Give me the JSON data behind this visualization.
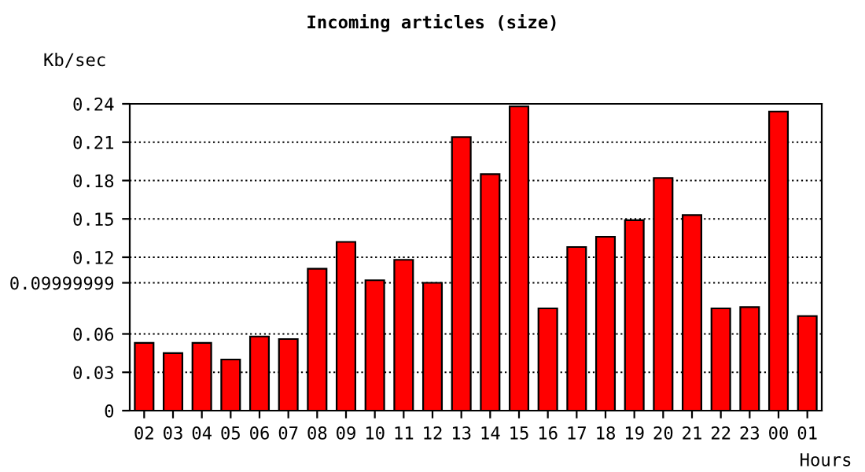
{
  "chart_data": {
    "type": "bar",
    "title": "Incoming articles (size)",
    "ylabel": "Kb/sec",
    "xlabel": "Hours",
    "categories": [
      "02",
      "03",
      "04",
      "05",
      "06",
      "07",
      "08",
      "09",
      "10",
      "11",
      "12",
      "13",
      "14",
      "15",
      "16",
      "17",
      "18",
      "19",
      "20",
      "21",
      "22",
      "23",
      "00",
      "01"
    ],
    "values": [
      0.053,
      0.045,
      0.053,
      0.04,
      0.058,
      0.056,
      0.111,
      0.132,
      0.102,
      0.118,
      0.1,
      0.214,
      0.185,
      0.238,
      0.08,
      0.128,
      0.136,
      0.149,
      0.182,
      0.153,
      0.08,
      0.081,
      0.234,
      0.074
    ],
    "color": "#ff0000",
    "ylim": [
      0,
      0.24
    ],
    "yticks": [
      0,
      0.03,
      0.06,
      0.09999999,
      0.12,
      0.15,
      0.18,
      0.21,
      0.24
    ],
    "grid": "y",
    "line_style": "dotted",
    "legend": false
  }
}
